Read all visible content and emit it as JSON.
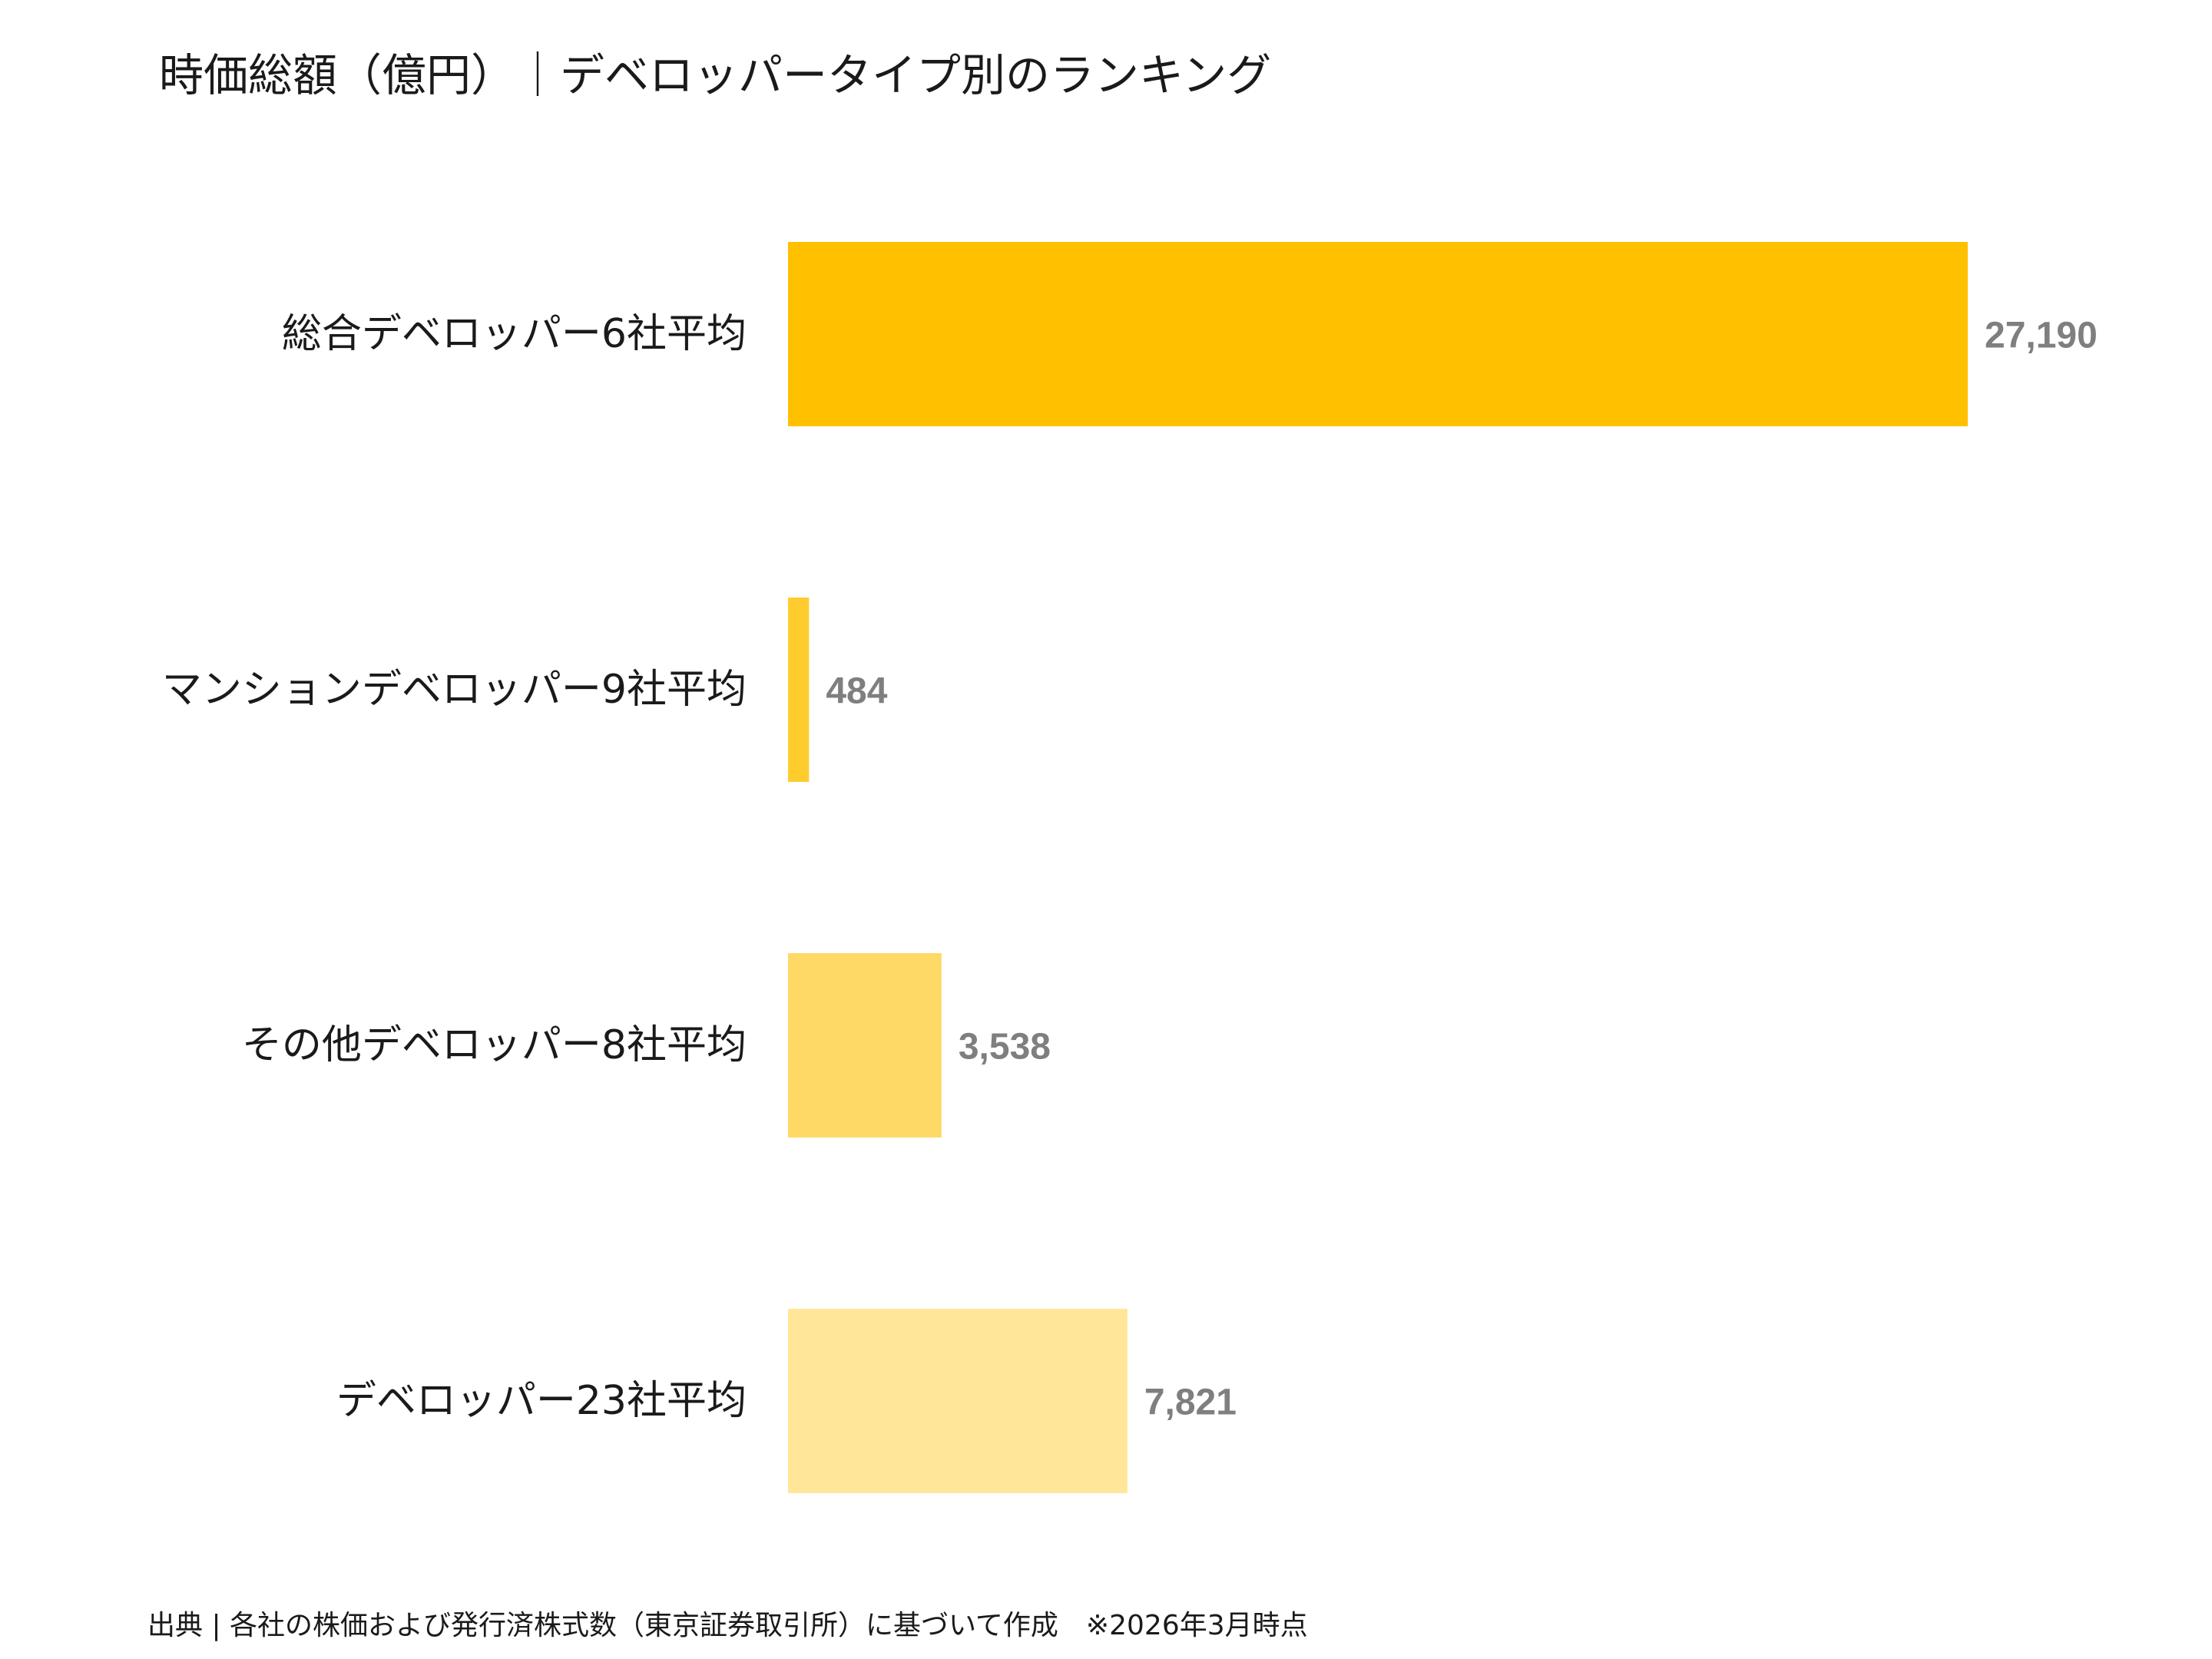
{
  "chart_data": {
    "type": "bar",
    "orientation": "horizontal",
    "title": "時価総額（億円）｜デベロッパータイプ別のランキング",
    "categories": [
      "総合デベロッパー6社平均",
      "マンションデベロッパー9社平均",
      "その他デベロッパー8社平均",
      "デベロッパー23社平均"
    ],
    "values": [
      27190,
      484,
      3538,
      7821
    ],
    "value_labels": [
      "27,190",
      "484",
      "3,538",
      "7,821"
    ],
    "colors": [
      "#ffc000",
      "#ffcc2e",
      "#ffd966",
      "#ffe699"
    ],
    "xlim": [
      0,
      27190
    ],
    "grid": false,
    "legend": "none",
    "source_note": "出典 | 各社の株価および発行済株式数（東京証券取引所）に基づいて作成　※2026年3月時点"
  }
}
